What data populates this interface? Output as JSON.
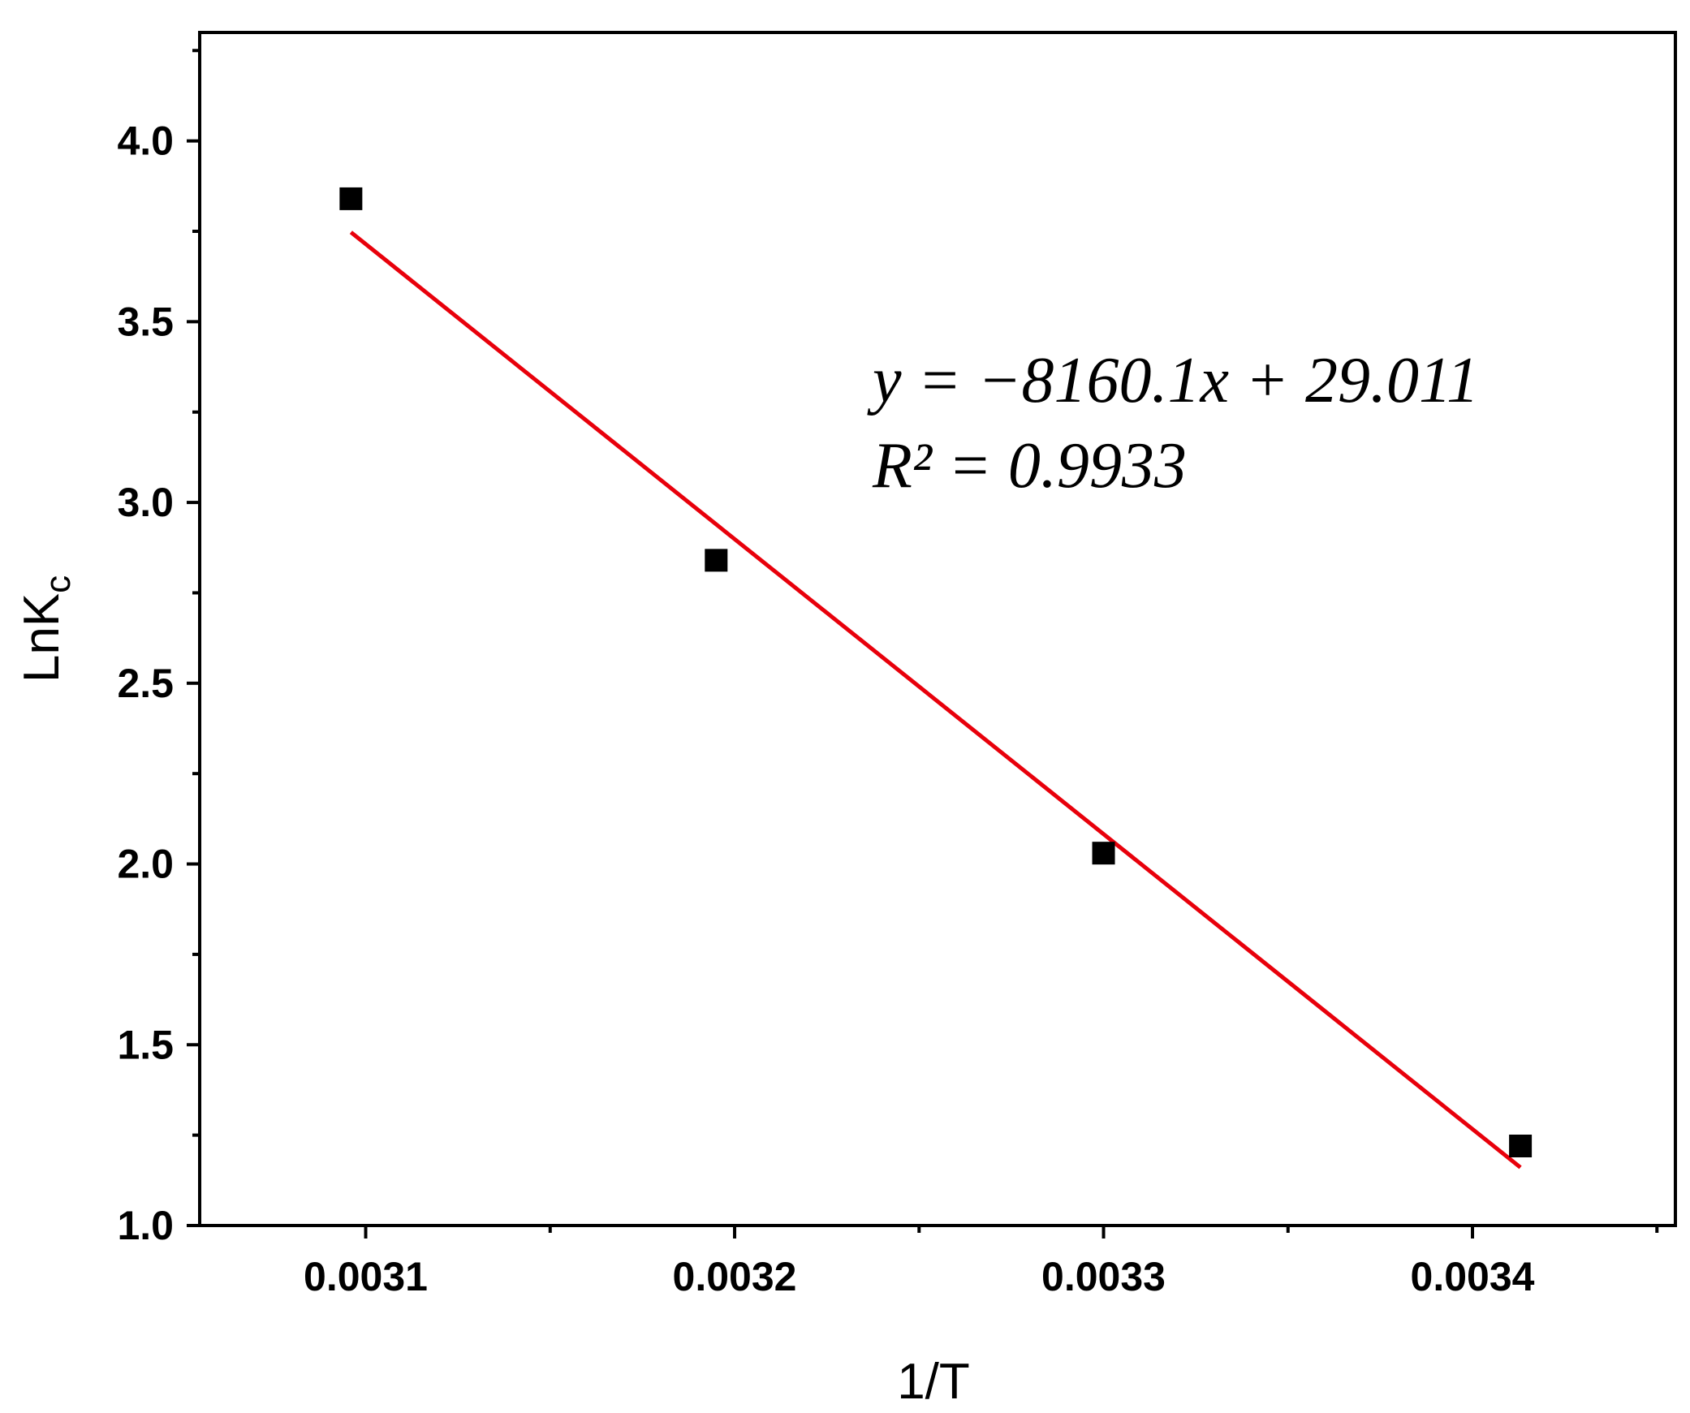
{
  "chart_data": {
    "type": "scatter",
    "title": "",
    "xlabel": "1/T",
    "ylabel": "LnK",
    "ylabel_subscript": "c",
    "xlim": [
      0.003055,
      0.003455
    ],
    "ylim": [
      1.0,
      4.3
    ],
    "x_ticks": [
      0.0031,
      0.0032,
      0.0033,
      0.0034
    ],
    "x_tick_labels": [
      "0.0031",
      "0.0032",
      "0.0033",
      "0.0034"
    ],
    "y_ticks": [
      1.0,
      1.5,
      2.0,
      2.5,
      3.0,
      3.5,
      4.0
    ],
    "y_tick_labels": [
      "1.0",
      "1.5",
      "2.0",
      "2.5",
      "3.0",
      "3.5",
      "4.0"
    ],
    "x_minor_ticks": [
      0.00315,
      0.00325,
      0.00335,
      0.00345
    ],
    "y_minor_ticks": [
      1.25,
      1.75,
      2.25,
      2.75,
      3.25,
      3.75,
      4.25
    ],
    "grid": false,
    "series": [
      {
        "marker": "square",
        "color": "#000000",
        "x": [
          0.003096,
          0.003195,
          0.0033,
          0.003413
        ],
        "y": [
          3.84,
          2.84,
          2.03,
          1.22
        ]
      }
    ],
    "fit_line": {
      "color": "#e8000b",
      "slope": -8160.1,
      "intercept": 29.011,
      "x_range": [
        0.003096,
        0.003413
      ]
    },
    "annotations": [
      "y = −8160.1x + 29.011",
      "R² = 0.9933"
    ]
  }
}
